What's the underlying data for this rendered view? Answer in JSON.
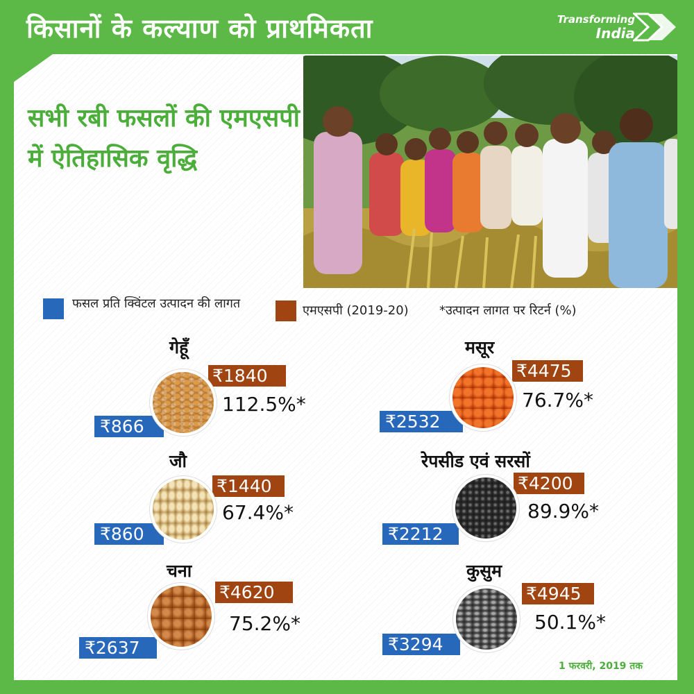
{
  "header": {
    "title": "किसानों के कल्याण को प्राथमिकता",
    "brand_line1": "Transforming",
    "brand_line2": "India"
  },
  "headline": "सभी रबी फसलों की एमएसपी में ऐतिहासिक वृद्धि",
  "legend": {
    "cost": "फसल प्रति क्विंटल उत्पादन की लागत",
    "msp": "एमएसपी (2019-20)",
    "return": "*उत्पादन लागत पर रिटर्न (%)"
  },
  "colors": {
    "green": "#5cb947",
    "msp": "#a04512",
    "cost": "#2768bb"
  },
  "crops": [
    {
      "name": "गेहूँ",
      "msp": "₹1840",
      "cost": "₹866",
      "return": "112.5%*",
      "image": "wheat-grains"
    },
    {
      "name": "मसूर",
      "msp": "₹4475",
      "cost": "₹2532",
      "return": "76.7%*",
      "image": "lentil-grains"
    },
    {
      "name": "जौ",
      "msp": "₹1440",
      "cost": "₹860",
      "return": "67.4%*",
      "image": "barley-grains"
    },
    {
      "name": "रेपसीड एवं सरसों",
      "msp": "₹4200",
      "cost": "₹2212",
      "return": "89.9%*",
      "image": "mustard-seeds"
    },
    {
      "name": "चना",
      "msp": "₹4620",
      "cost": "₹2637",
      "return": "75.2%*",
      "image": "gram-grains"
    },
    {
      "name": "कुसुम",
      "msp": "₹4945",
      "cost": "₹3294",
      "return": "50.1%*",
      "image": "safflower-seeds"
    }
  ],
  "footer": {
    "date": "1 फरवरी, 2019 तक"
  }
}
